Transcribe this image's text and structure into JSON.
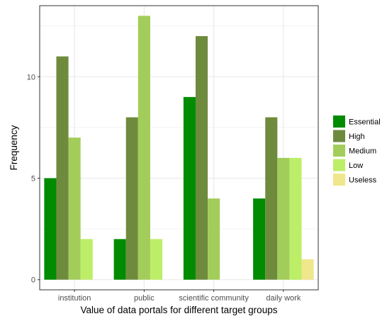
{
  "chart_data": {
    "type": "bar",
    "categories": [
      "institution",
      "public",
      "scientific community",
      "daily work"
    ],
    "series": [
      {
        "name": "Essential",
        "values": [
          5,
          2,
          9,
          4
        ],
        "color": "#008B00"
      },
      {
        "name": "High",
        "values": [
          11,
          8,
          12,
          8
        ],
        "color": "#6E8B3D"
      },
      {
        "name": "Medium",
        "values": [
          7,
          13,
          4,
          6
        ],
        "color": "#A2CD5A"
      },
      {
        "name": "Low",
        "values": [
          2,
          2,
          0,
          6
        ],
        "color": "#BCEE68"
      },
      {
        "name": "Useless",
        "values": [
          0,
          0,
          0,
          1
        ],
        "color": "#F0E68C"
      }
    ],
    "xlabel": "Value of data portals for different target groups",
    "ylabel": "Frequency",
    "yticks": [
      0,
      5,
      10
    ],
    "ylim": [
      -0.5,
      13.5
    ],
    "grid": true,
    "legend_position": "right"
  }
}
